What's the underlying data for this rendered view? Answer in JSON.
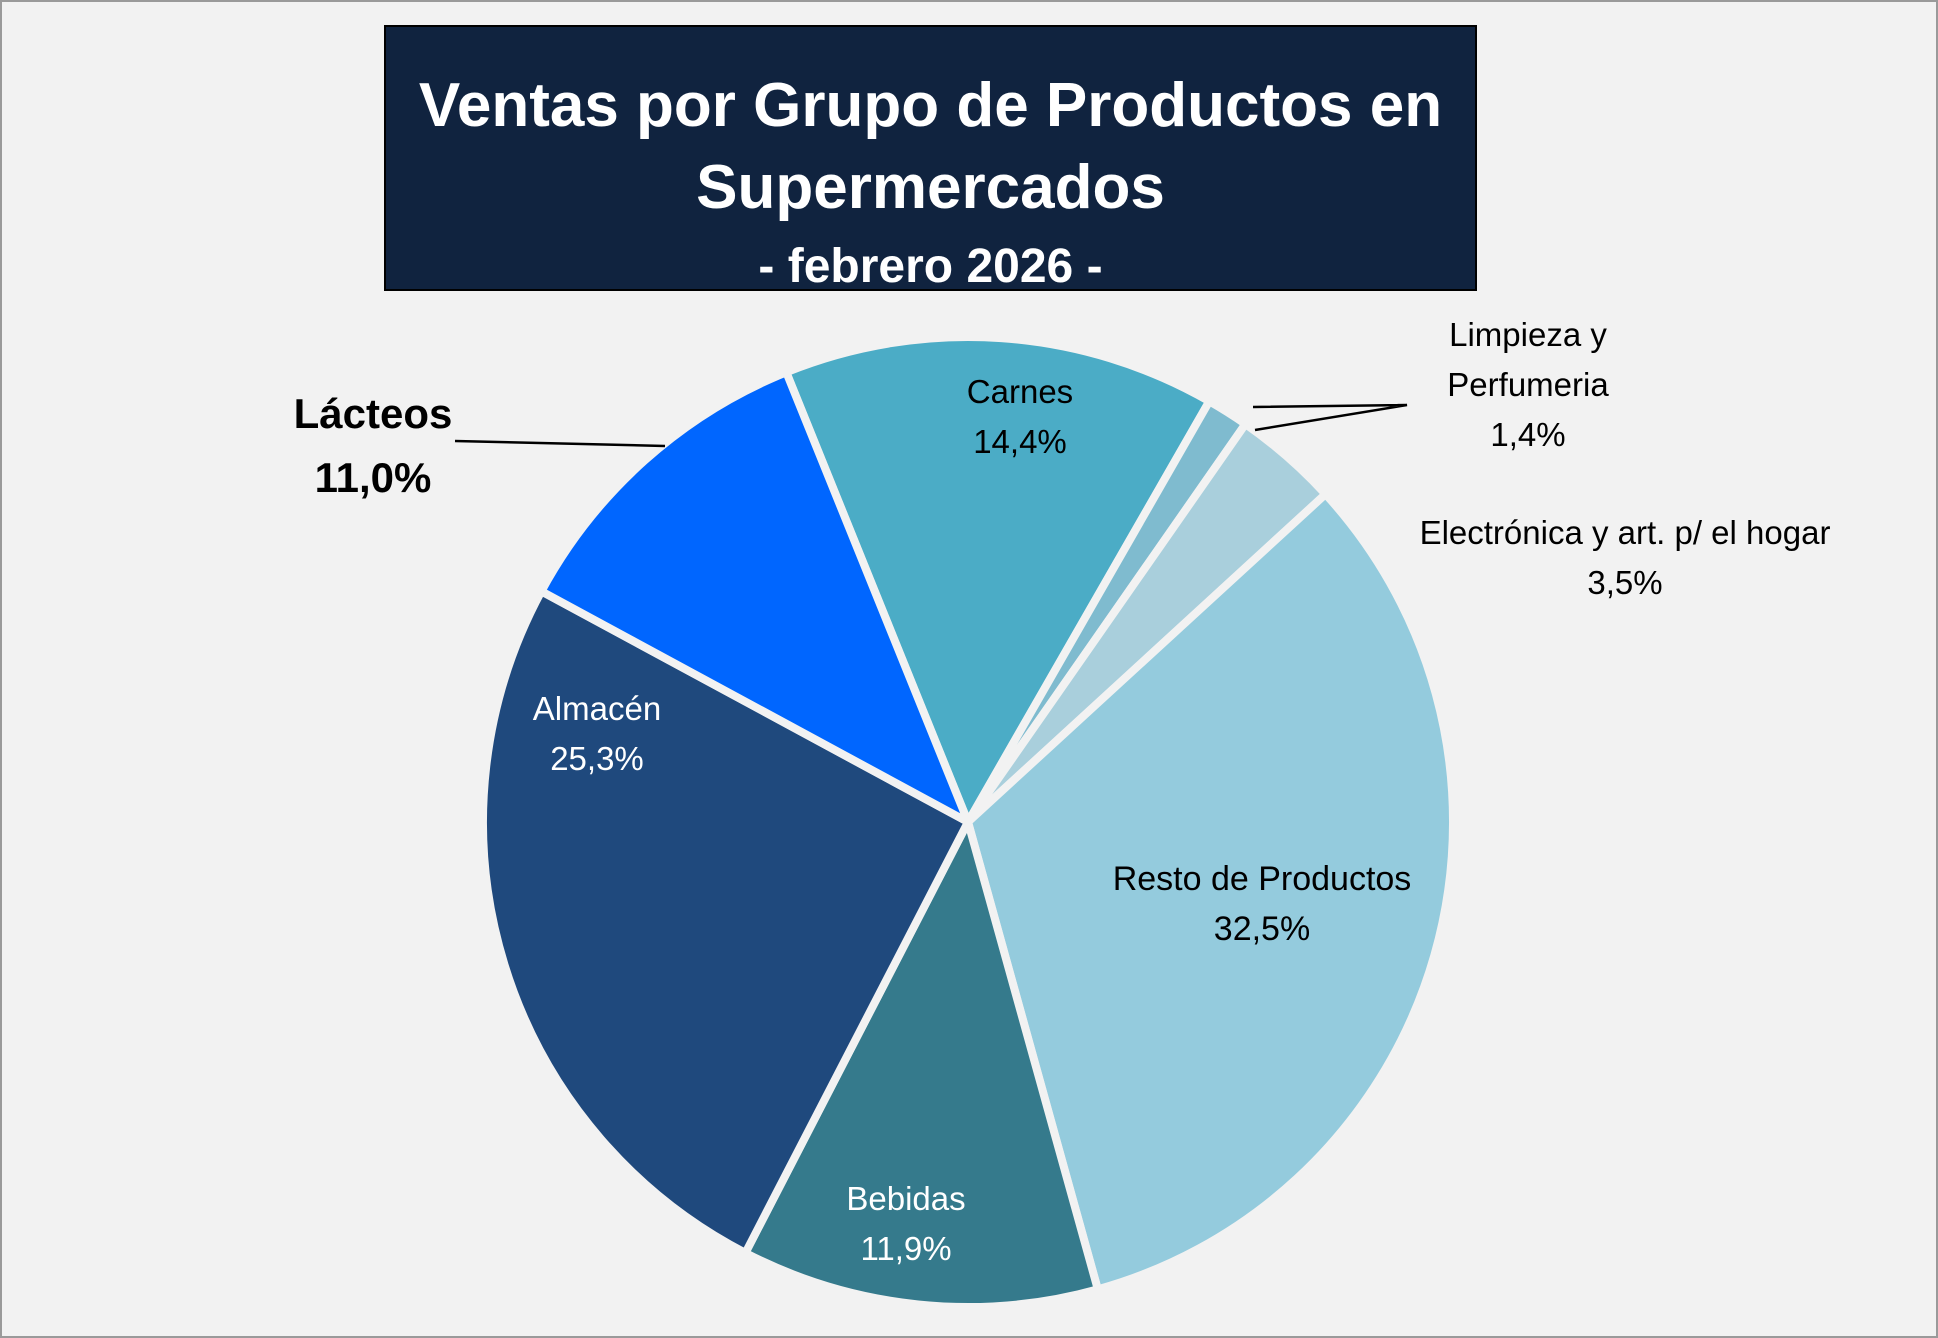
{
  "chart_data": {
    "type": "pie",
    "title": "Ventas por Grupo de Productos en Supermercados",
    "subtitle": "- febrero 2026 -",
    "slices": [
      {
        "label": "Carnes",
        "value_label": "14,4%",
        "value": 14.4,
        "color": "#4bacc6"
      },
      {
        "label": "Limpieza y Perfumeria",
        "value_label": "1,4%",
        "value": 1.4,
        "color": "#7fbbcf"
      },
      {
        "label": "Electrónica y art. p/ el hogar",
        "value_label": "3,5%",
        "value": 3.5,
        "color": "#a9cfdc"
      },
      {
        "label": "Resto de Productos",
        "value_label": "32,5%",
        "value": 32.5,
        "color": "#94cbdd"
      },
      {
        "label": "Bebidas",
        "value_label": "11,9%",
        "value": 11.9,
        "color": "#357a8c"
      },
      {
        "label": "Almacén",
        "value_label": "25,3%",
        "value": 25.3,
        "color": "#1f497d"
      },
      {
        "label": "Lácteos",
        "value_label": "11,0%",
        "value": 11.0,
        "color": "#0066ff"
      }
    ]
  }
}
